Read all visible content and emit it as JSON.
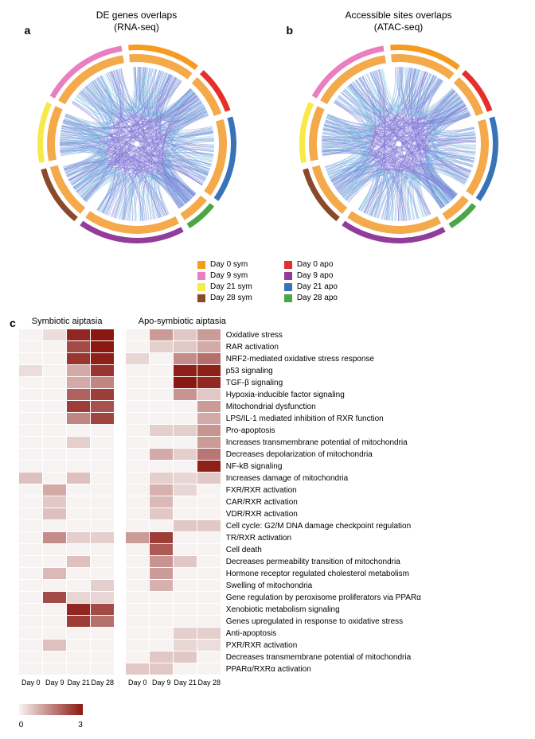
{
  "panels": {
    "a": {
      "label": "a",
      "title_line1": "DE genes overlaps",
      "title_line2": "(RNA-seq)"
    },
    "b": {
      "label": "b",
      "title_line1": "Accessible sites overlaps",
      "title_line2": "(ATAC-seq)"
    },
    "c": {
      "label": "c"
    }
  },
  "chord": {
    "segments": [
      {
        "name": "Day 0 sym",
        "color": "#f59b22",
        "start": 95,
        "end": 52
      },
      {
        "name": "Day 0 apo",
        "color": "#e62e2a",
        "start": 48,
        "end": 20
      },
      {
        "name": "Day 21 apo",
        "color": "#3873b8",
        "start": 16,
        "end": -35
      },
      {
        "name": "Day 28 apo",
        "color": "#4ba647",
        "start": -39,
        "end": -58
      },
      {
        "name": "Day 9 apo",
        "color": "#913c99",
        "start": -62,
        "end": -125
      },
      {
        "name": "Day 28 sym",
        "color": "#8a4a2a",
        "start": -129,
        "end": -165
      },
      {
        "name": "Day 21 sym",
        "color": "#f7e948",
        "start": -169,
        "end": -205
      },
      {
        "name": "Day 9 sym",
        "color": "#e97fc0",
        "start": -209,
        "end": -261
      }
    ],
    "inner_ring_color": "#f4a94a",
    "link_color_outer": "#8076d6",
    "link_color_inner": "#6fc0e0",
    "background": "#ffffff"
  },
  "legend": {
    "left": [
      {
        "label": "Day 0 sym",
        "color": "#f59b22"
      },
      {
        "label": "Day 9 sym",
        "color": "#e97fc0"
      },
      {
        "label": "Day 21 sym",
        "color": "#f7e948"
      },
      {
        "label": "Day 28 sym",
        "color": "#8a4a2a"
      }
    ],
    "right": [
      {
        "label": "Day 0 apo",
        "color": "#e62e2a"
      },
      {
        "label": "Day 9 apo",
        "color": "#913c99"
      },
      {
        "label": "Day 21 apo",
        "color": "#3873b8"
      },
      {
        "label": "Day 28 apo",
        "color": "#4ba647"
      }
    ]
  },
  "heatmap": {
    "titles": {
      "sym": "Symbiotic aiptasia",
      "apo": "Apo-symbiotic aiptasia"
    },
    "columns": [
      "Day 0",
      "Day 9",
      "Day 21",
      "Day 28"
    ],
    "rows": [
      "Oxidative stress",
      "RAR activation",
      "NRF2-mediated oxidative stress response",
      "p53 signaling",
      "TGF-β signaling",
      "Hypoxia-inducible factor signaling",
      "Mitochondrial dysfunction",
      "LPS/IL-1 mediated inhibition of RXR function",
      "Pro-apoptosis",
      "Increases transmembrane potential of mitochondria",
      "Decreases depolarization of mitochondria",
      "NF-kB signaling",
      "Increases damage of mitochondria",
      "FXR/RXR activation",
      "CAR/RXR activation",
      "VDR/RXR activation",
      "Cell cycle: G2/M DNA damage checkpoint regulation",
      "TR/RXR activation",
      "Cell death",
      "Decreases permeability transition of mitochondria",
      "Hormone receptor regulated cholesterol metabolism",
      "Swelling of mitochondria",
      "Gene regulation by peroxisome proliferators via PPARα",
      "Xenobiotic metabolism signaling",
      "Genes upregulated in response to oxidative stress",
      "Anti-apoptosis",
      "PXR/RXR activation",
      "Decreases transmembrane potential of mitochondria",
      "PPARα/RXRα activation"
    ],
    "sym_values": [
      [
        0.0,
        0.3,
        2.8,
        3.0
      ],
      [
        0.0,
        0.0,
        2.3,
        3.0
      ],
      [
        0.0,
        0.0,
        2.6,
        2.9
      ],
      [
        0.3,
        0.0,
        1.0,
        2.6
      ],
      [
        0.0,
        0.0,
        1.0,
        1.5
      ],
      [
        0.0,
        0.0,
        2.0,
        2.5
      ],
      [
        0.0,
        0.0,
        2.5,
        2.2
      ],
      [
        0.0,
        0.0,
        1.5,
        2.4
      ],
      [
        0.0,
        0.0,
        0.0,
        0.0
      ],
      [
        0.0,
        0.0,
        0.5,
        0.0
      ],
      [
        0.0,
        0.0,
        0.0,
        0.0
      ],
      [
        0.0,
        0.0,
        0.0,
        0.0
      ],
      [
        0.7,
        0.0,
        0.7,
        0.0
      ],
      [
        0.0,
        1.0,
        0.0,
        0.0
      ],
      [
        0.0,
        0.6,
        0.0,
        0.0
      ],
      [
        0.0,
        0.7,
        0.0,
        0.0
      ],
      [
        0.0,
        0.0,
        0.0,
        0.0
      ],
      [
        0.0,
        1.4,
        0.5,
        0.5
      ],
      [
        0.0,
        0.0,
        0.0,
        0.0
      ],
      [
        0.0,
        0.0,
        0.7,
        0.0
      ],
      [
        0.0,
        0.8,
        0.0,
        0.0
      ],
      [
        0.0,
        0.0,
        0.0,
        0.5
      ],
      [
        0.0,
        2.3,
        0.4,
        0.4
      ],
      [
        0.0,
        0.0,
        2.8,
        2.3
      ],
      [
        0.0,
        0.0,
        2.5,
        1.8
      ],
      [
        0.0,
        0.0,
        0.0,
        0.0
      ],
      [
        0.0,
        0.7,
        0.0,
        0.0
      ],
      [
        0.0,
        0.0,
        0.0,
        0.0
      ],
      [
        0.0,
        0.0,
        0.0,
        0.0
      ]
    ],
    "apo_values": [
      [
        0.0,
        1.2,
        0.6,
        1.2
      ],
      [
        0.0,
        0.5,
        0.6,
        1.0
      ],
      [
        0.4,
        0.0,
        1.4,
        1.8
      ],
      [
        0.0,
        0.0,
        2.9,
        2.9
      ],
      [
        0.0,
        0.0,
        3.0,
        2.8
      ],
      [
        0.0,
        0.0,
        1.3,
        0.6
      ],
      [
        0.0,
        0.0,
        0.0,
        1.2
      ],
      [
        0.0,
        0.0,
        0.0,
        1.0
      ],
      [
        0.0,
        0.5,
        0.5,
        1.3
      ],
      [
        0.0,
        0.0,
        0.0,
        1.2
      ],
      [
        0.0,
        1.0,
        0.5,
        1.7
      ],
      [
        0.0,
        0.0,
        0.0,
        2.9
      ],
      [
        0.0,
        0.5,
        0.4,
        0.6
      ],
      [
        0.0,
        0.9,
        0.4,
        0.0
      ],
      [
        0.0,
        0.8,
        0.0,
        0.0
      ],
      [
        0.0,
        0.6,
        0.0,
        0.0
      ],
      [
        0.0,
        0.0,
        0.6,
        0.6
      ],
      [
        1.2,
        2.5,
        0.0,
        0.0
      ],
      [
        0.0,
        2.1,
        0.0,
        0.0
      ],
      [
        0.0,
        1.3,
        0.6,
        0.0
      ],
      [
        0.0,
        1.2,
        0.0,
        0.0
      ],
      [
        0.0,
        0.9,
        0.0,
        0.0
      ],
      [
        0.0,
        0.0,
        0.0,
        0.0
      ],
      [
        0.0,
        0.0,
        0.0,
        0.0
      ],
      [
        0.0,
        0.0,
        0.0,
        0.0
      ],
      [
        0.0,
        0.0,
        0.5,
        0.5
      ],
      [
        0.0,
        0.0,
        0.4,
        0.3
      ],
      [
        0.0,
        0.6,
        0.6,
        0.0
      ],
      [
        0.6,
        0.6,
        0.0,
        0.0
      ]
    ],
    "colorscale": {
      "min": 0,
      "max": 3,
      "min_color": "#f7f3f2",
      "max_color": "#8a1812",
      "min_label": "0",
      "max_label": "3"
    },
    "cell_border": "#ffffff"
  }
}
